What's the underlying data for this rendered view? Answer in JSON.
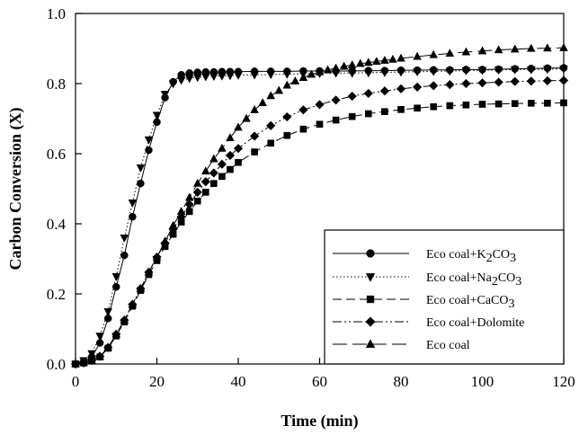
{
  "chart_data": {
    "type": "line",
    "xlabel": "Time (min)",
    "ylabel": "Carbon Conversion (X)",
    "xlim": [
      0,
      120
    ],
    "ylim": [
      0.0,
      1.0
    ],
    "xticks": [
      "0",
      "20",
      "40",
      "60",
      "80",
      "100",
      "120"
    ],
    "yticks": [
      "0.0",
      "0.2",
      "0.4",
      "0.6",
      "0.8",
      "1.0"
    ],
    "grid": false,
    "legend_position": "bottom-right",
    "series": [
      {
        "name": "Eco coal+K2CO3",
        "name_main": "Eco coal+K",
        "name_sub": "2",
        "name_tail": "CO",
        "name_sub2": "3",
        "marker": "circle",
        "dash": "solid",
        "x": [
          0,
          2,
          4,
          6,
          8,
          10,
          12,
          14,
          16,
          18,
          20,
          22,
          24,
          26,
          28,
          30,
          32,
          34,
          36,
          38,
          40,
          44,
          48,
          52,
          56,
          60,
          64,
          68,
          72,
          76,
          80,
          84,
          88,
          92,
          96,
          100,
          104,
          108,
          112,
          116,
          120
        ],
        "y": [
          0.0,
          0.005,
          0.02,
          0.06,
          0.13,
          0.22,
          0.31,
          0.42,
          0.515,
          0.61,
          0.69,
          0.76,
          0.805,
          0.825,
          0.83,
          0.832,
          0.833,
          0.833,
          0.834,
          0.834,
          0.834,
          0.835,
          0.835,
          0.835,
          0.836,
          0.836,
          0.836,
          0.836,
          0.837,
          0.837,
          0.838,
          0.838,
          0.839,
          0.839,
          0.84,
          0.84,
          0.841,
          0.842,
          0.843,
          0.844,
          0.845
        ]
      },
      {
        "name": "Eco coal+Na2CO3",
        "name_main": "Eco coal+Na",
        "name_sub": "2",
        "name_tail": "CO",
        "name_sub2": "3",
        "marker": "triangle-down",
        "dash": "dotted",
        "x": [
          0,
          2,
          4,
          6,
          8,
          10,
          12,
          14,
          16,
          18,
          20,
          22,
          24,
          26,
          28,
          30,
          32,
          34,
          36,
          38,
          40,
          44,
          48,
          52,
          56,
          60,
          64,
          68,
          72,
          76,
          80,
          84,
          88,
          92,
          96,
          100,
          104,
          108,
          112,
          116,
          120
        ],
        "y": [
          0.0,
          0.01,
          0.03,
          0.08,
          0.15,
          0.25,
          0.36,
          0.46,
          0.56,
          0.64,
          0.71,
          0.77,
          0.8,
          0.81,
          0.815,
          0.818,
          0.82,
          0.821,
          0.822,
          0.823,
          0.824,
          0.825,
          0.826,
          0.827,
          0.828,
          0.829,
          0.83,
          0.83,
          0.831,
          0.832,
          0.833,
          0.834,
          0.835,
          0.836,
          0.837,
          0.838,
          0.839,
          0.84,
          0.84,
          0.841,
          0.842
        ]
      },
      {
        "name": "Eco coal+CaCO3",
        "name_main": "Eco coal+CaCO",
        "name_sub": "3",
        "name_tail": "",
        "name_sub2": "",
        "marker": "square",
        "dash": "dashed",
        "x": [
          0,
          2,
          4,
          6,
          8,
          10,
          12,
          14,
          16,
          18,
          20,
          22,
          24,
          26,
          28,
          30,
          32,
          34,
          36,
          38,
          40,
          44,
          48,
          52,
          56,
          60,
          64,
          68,
          72,
          76,
          80,
          84,
          88,
          92,
          96,
          100,
          104,
          108,
          112,
          116,
          120
        ],
        "y": [
          0.0,
          0.003,
          0.01,
          0.02,
          0.045,
          0.08,
          0.12,
          0.165,
          0.21,
          0.255,
          0.295,
          0.335,
          0.37,
          0.405,
          0.435,
          0.465,
          0.49,
          0.515,
          0.535,
          0.555,
          0.575,
          0.605,
          0.63,
          0.652,
          0.67,
          0.684,
          0.696,
          0.706,
          0.714,
          0.72,
          0.726,
          0.73,
          0.734,
          0.737,
          0.739,
          0.741,
          0.742,
          0.743,
          0.744,
          0.744,
          0.745
        ]
      },
      {
        "name": "Eco coal+Dolomite",
        "name_main": "Eco coal+Dolomite",
        "name_sub": "",
        "name_tail": "",
        "name_sub2": "",
        "marker": "diamond",
        "dash": "dash-dot-dot",
        "x": [
          0,
          2,
          4,
          6,
          8,
          10,
          12,
          14,
          16,
          18,
          20,
          22,
          24,
          26,
          28,
          30,
          32,
          34,
          36,
          38,
          40,
          44,
          48,
          52,
          56,
          60,
          64,
          68,
          72,
          76,
          80,
          84,
          88,
          92,
          96,
          100,
          104,
          108,
          112,
          116,
          120
        ],
        "y": [
          0.0,
          0.003,
          0.01,
          0.022,
          0.047,
          0.085,
          0.125,
          0.17,
          0.215,
          0.262,
          0.305,
          0.345,
          0.385,
          0.42,
          0.455,
          0.49,
          0.52,
          0.545,
          0.57,
          0.595,
          0.615,
          0.65,
          0.68,
          0.705,
          0.725,
          0.74,
          0.753,
          0.764,
          0.772,
          0.779,
          0.785,
          0.79,
          0.794,
          0.797,
          0.8,
          0.802,
          0.804,
          0.806,
          0.807,
          0.808,
          0.809
        ]
      },
      {
        "name": "Eco coal",
        "name_main": "Eco coal",
        "name_sub": "",
        "name_tail": "",
        "name_sub2": "",
        "marker": "triangle-up",
        "dash": "long-dash",
        "x": [
          0,
          2,
          4,
          6,
          8,
          10,
          12,
          14,
          16,
          18,
          20,
          22,
          24,
          26,
          28,
          30,
          32,
          34,
          36,
          38,
          40,
          42,
          44,
          46,
          48,
          50,
          52,
          54,
          56,
          58,
          60,
          62,
          64,
          66,
          68,
          70,
          72,
          74,
          76,
          78,
          80,
          84,
          88,
          92,
          96,
          100,
          104,
          108,
          112,
          116,
          120
        ],
        "y": [
          0.0,
          0.003,
          0.01,
          0.022,
          0.047,
          0.085,
          0.125,
          0.17,
          0.215,
          0.262,
          0.305,
          0.35,
          0.395,
          0.435,
          0.475,
          0.515,
          0.55,
          0.585,
          0.615,
          0.645,
          0.675,
          0.7,
          0.725,
          0.745,
          0.765,
          0.78,
          0.795,
          0.807,
          0.817,
          0.826,
          0.833,
          0.839,
          0.844,
          0.849,
          0.853,
          0.857,
          0.86,
          0.863,
          0.866,
          0.869,
          0.872,
          0.877,
          0.882,
          0.886,
          0.89,
          0.893,
          0.896,
          0.898,
          0.9,
          0.901,
          0.902
        ]
      }
    ]
  }
}
